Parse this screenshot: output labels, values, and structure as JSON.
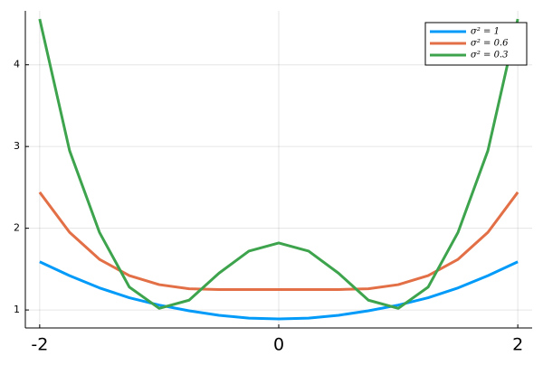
{
  "chart_data": {
    "type": "line",
    "x": [
      -2,
      -1.75,
      -1.5,
      -1.25,
      -1,
      -0.75,
      -0.5,
      -0.25,
      0,
      0.25,
      0.5,
      0.75,
      1,
      1.25,
      1.5,
      1.75,
      2
    ],
    "series": [
      {
        "name": "σ² = 1",
        "color": "#009af9",
        "values": [
          1.59,
          1.42,
          1.27,
          1.15,
          1.06,
          0.99,
          0.935,
          0.9,
          0.89,
          0.9,
          0.935,
          0.99,
          1.06,
          1.15,
          1.27,
          1.42,
          1.59
        ]
      },
      {
        "name": "σ² = 0.6",
        "color": "#e26f46",
        "values": [
          2.44,
          1.95,
          1.62,
          1.42,
          1.31,
          1.26,
          1.25,
          1.25,
          1.25,
          1.25,
          1.25,
          1.26,
          1.31,
          1.42,
          1.62,
          1.95,
          2.44
        ]
      },
      {
        "name": "σ² = 0.3",
        "color": "#3da44d",
        "values": [
          4.56,
          2.95,
          1.95,
          1.28,
          1.02,
          1.12,
          1.45,
          1.72,
          1.82,
          1.72,
          1.45,
          1.12,
          1.02,
          1.28,
          1.95,
          2.95,
          4.56
        ]
      }
    ],
    "xlim": [
      -2.12,
      2.12
    ],
    "ylim": [
      0.78,
      4.66
    ],
    "xticks": [
      -2,
      0,
      2
    ],
    "yticks": [
      1,
      2,
      3,
      4
    ],
    "grid": true,
    "legend_position": "top-right"
  }
}
